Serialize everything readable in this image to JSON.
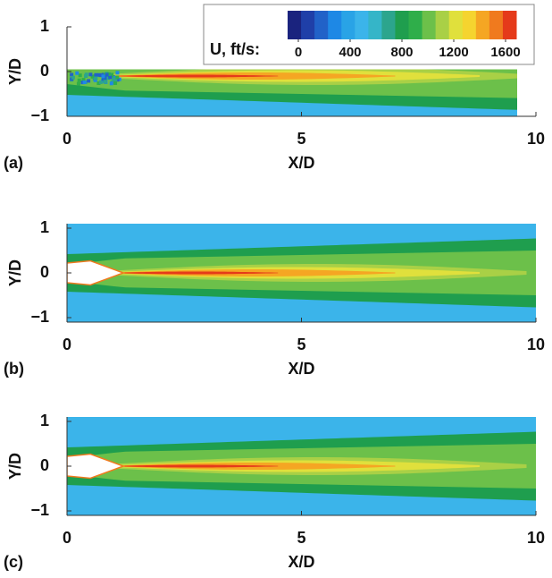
{
  "chart_data": [
    {
      "type": "contour",
      "panel_label": "(a)",
      "xlabel": "X/D",
      "ylabel": "Y/D",
      "xlim": [
        0,
        10
      ],
      "ylim": [
        -1,
        1
      ],
      "xticks": [
        0,
        5,
        10
      ],
      "yticks": [
        {
          "value": -1,
          "label": "−1"
        },
        0,
        1
      ],
      "colorbar": {
        "label": "U, ft/s:",
        "clim": [
          0,
          1600
        ],
        "ticks": [
          0,
          400,
          800,
          1200,
          1600
        ],
        "colors": [
          "#1a237e",
          "#1f3fa8",
          "#2162c8",
          "#1e88e5",
          "#29a3e6",
          "#3bb4ea",
          "#35b5c8",
          "#2ca58d",
          "#1f9e4e",
          "#2fae4a",
          "#6cc04a",
          "#a9d046",
          "#e0e03c",
          "#f5d42f",
          "#f5a623",
          "#f07a1e",
          "#e53a1a"
        ]
      }
    },
    {
      "type": "contour",
      "panel_label": "(b)",
      "xlabel": "X/D",
      "ylabel": "Y/D",
      "xlim": [
        0,
        10
      ],
      "ylim": [
        -1.1,
        1.1
      ],
      "xticks": [
        0,
        5,
        10
      ],
      "yticks": [
        {
          "value": -1,
          "label": "−1"
        },
        0,
        1
      ]
    },
    {
      "type": "contour",
      "panel_label": "(c)",
      "xlabel": "X/D",
      "ylabel": "Y/D",
      "xlim": [
        0,
        10
      ],
      "ylim": [
        -1.1,
        1.1
      ],
      "xticks": [
        0,
        5,
        10
      ],
      "yticks": [
        {
          "value": -1,
          "label": "−1"
        },
        0,
        1
      ]
    }
  ]
}
